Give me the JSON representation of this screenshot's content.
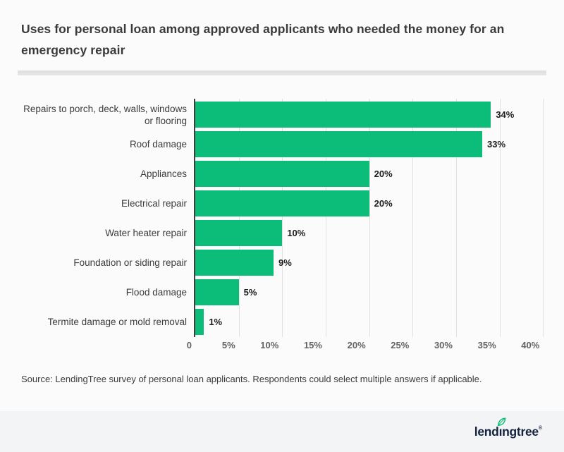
{
  "header": {
    "title": "Uses for personal loan among approved applicants who needed the money for an emergency repair"
  },
  "chart_data": {
    "type": "bar",
    "orientation": "horizontal",
    "title": "Uses for personal loan among approved applicants who needed the money for an emergency repair",
    "categories": [
      "Repairs to porch, deck, walls, windows or flooring",
      "Roof damage",
      "Appliances",
      "Electrical repair",
      "Water heater repair",
      "Foundation or siding repair",
      "Flood damage",
      "Termite damage or mold removal"
    ],
    "values": [
      34,
      33,
      20,
      20,
      10,
      9,
      5,
      1
    ],
    "value_labels": [
      "34%",
      "33%",
      "20%",
      "20%",
      "10%",
      "9%",
      "5%",
      "1%"
    ],
    "x_ticks": [
      {
        "value": 0,
        "label": "0"
      },
      {
        "value": 5,
        "label": "5%"
      },
      {
        "value": 10,
        "label": "10%"
      },
      {
        "value": 15,
        "label": "15%"
      },
      {
        "value": 20,
        "label": "20%"
      },
      {
        "value": 25,
        "label": "25%"
      },
      {
        "value": 30,
        "label": "30%"
      },
      {
        "value": 35,
        "label": "35%"
      },
      {
        "value": 40,
        "label": "40%"
      }
    ],
    "xlim": [
      0,
      40
    ],
    "grid": true,
    "legend": "none",
    "colors": {
      "bar": "#0cbd7a",
      "axis": "#3d3d3d",
      "gridline": "#e1e1e1",
      "value_label": "#1c1c1c",
      "category_label": "#3c3c3c",
      "tick_label": "#636363"
    }
  },
  "source_note": {
    "text": "Source: LendingTree survey of personal loan applicants. Respondents could select multiple answers if applicable."
  },
  "brand": {
    "wordmark": "lendingtree",
    "registered_mark": "®",
    "leaf_color": "#0cbd7a",
    "wordmark_color": "#16233f",
    "footer_bg": "#f3f4f5"
  }
}
